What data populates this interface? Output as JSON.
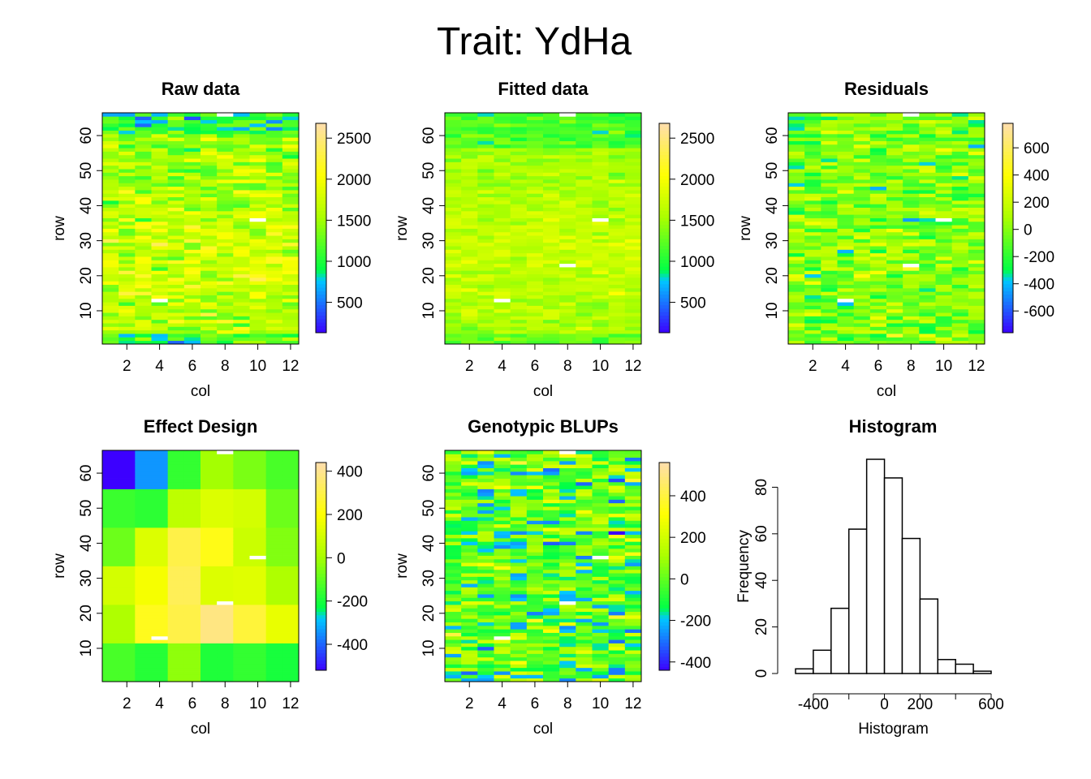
{
  "title": "Trait: YdHa",
  "chart_data": [
    {
      "type": "heatmap",
      "title": "Raw data",
      "xlabel": "col",
      "ylabel": "row",
      "xlim": [
        0.5,
        12.5
      ],
      "ylim": [
        0.5,
        66.5
      ],
      "xticks": [
        2,
        4,
        6,
        8,
        10,
        12
      ],
      "yticks": [
        10,
        20,
        30,
        40,
        50,
        60
      ],
      "colorbar": {
        "range": [
          130,
          2680
        ],
        "ticks": [
          500,
          1000,
          1500,
          2000,
          2500
        ]
      },
      "pattern": "raw",
      "missing": [
        [
          10,
          36
        ],
        [
          4,
          13
        ],
        [
          8,
          66
        ]
      ]
    },
    {
      "type": "heatmap",
      "title": "Fitted data",
      "xlabel": "col",
      "ylabel": "row",
      "xlim": [
        0.5,
        12.5
      ],
      "ylim": [
        0.5,
        66.5
      ],
      "xticks": [
        2,
        4,
        6,
        8,
        10,
        12
      ],
      "yticks": [
        10,
        20,
        30,
        40,
        50,
        60
      ],
      "colorbar": {
        "range": [
          130,
          2680
        ],
        "ticks": [
          500,
          1000,
          1500,
          2000,
          2500
        ]
      },
      "pattern": "fitted",
      "missing": [
        [
          10,
          36
        ],
        [
          4,
          13
        ],
        [
          8,
          23
        ],
        [
          8,
          66
        ]
      ]
    },
    {
      "type": "heatmap",
      "title": "Residuals",
      "xlabel": "col",
      "ylabel": "row",
      "xlim": [
        0.5,
        12.5
      ],
      "ylim": [
        0.5,
        66.5
      ],
      "xticks": [
        2,
        4,
        6,
        8,
        10,
        12
      ],
      "yticks": [
        10,
        20,
        30,
        40,
        50,
        60
      ],
      "colorbar": {
        "range": [
          -760,
          780
        ],
        "ticks": [
          -600,
          -400,
          -200,
          0,
          200,
          400,
          600
        ]
      },
      "pattern": "resid",
      "missing": [
        [
          10,
          36
        ],
        [
          4,
          13
        ],
        [
          8,
          23
        ],
        [
          8,
          66
        ]
      ]
    },
    {
      "type": "heatmap",
      "title": "Effect Design",
      "xlabel": "col",
      "ylabel": "row",
      "xlim": [
        0.5,
        12.5
      ],
      "ylim": [
        0.5,
        66.5
      ],
      "xticks": [
        2,
        4,
        6,
        8,
        10,
        12
      ],
      "yticks": [
        10,
        20,
        30,
        40,
        50,
        60
      ],
      "colorbar": {
        "range": [
          -520,
          440
        ],
        "ticks": [
          -400,
          -200,
          0,
          200,
          400
        ]
      },
      "pattern": "blocks",
      "block_cols": [
        [
          1,
          2
        ],
        [
          3,
          4
        ],
        [
          5,
          6
        ],
        [
          7,
          8
        ],
        [
          9,
          10
        ],
        [
          11,
          12
        ]
      ],
      "block_rows": [
        [
          1,
          11
        ],
        [
          12,
          22
        ],
        [
          23,
          33
        ],
        [
          34,
          44
        ],
        [
          45,
          55
        ],
        [
          56,
          66
        ]
      ],
      "block_values": [
        [
          -130,
          -180,
          -30,
          -190,
          -160,
          -200
        ],
        [
          20,
          240,
          300,
          380,
          280,
          150
        ],
        [
          100,
          180,
          320,
          120,
          130,
          20
        ],
        [
          -80,
          120,
          300,
          230,
          80,
          -50
        ],
        [
          -150,
          -170,
          50,
          120,
          100,
          -80
        ],
        [
          -520,
          -340,
          -160,
          0,
          -60,
          -130
        ]
      ],
      "missing": [
        [
          10,
          36
        ],
        [
          4,
          13
        ],
        [
          8,
          23
        ],
        [
          8,
          66
        ]
      ]
    },
    {
      "type": "heatmap",
      "title": "Genotypic BLUPs",
      "xlabel": "col",
      "ylabel": "row",
      "xlim": [
        0.5,
        12.5
      ],
      "ylim": [
        0.5,
        66.5
      ],
      "xticks": [
        2,
        4,
        6,
        8,
        10,
        12
      ],
      "yticks": [
        10,
        20,
        30,
        40,
        50,
        60
      ],
      "colorbar": {
        "range": [
          -440,
          560
        ],
        "ticks": [
          -400,
          -200,
          0,
          200,
          400
        ]
      },
      "pattern": "blup",
      "missing": [
        [
          10,
          36
        ],
        [
          4,
          13
        ],
        [
          8,
          23
        ],
        [
          8,
          66
        ]
      ]
    },
    {
      "type": "bar",
      "title": "Histogram",
      "xlabel": "Histogram",
      "ylabel": "Frequency",
      "bins": [
        -500,
        -400,
        -300,
        -200,
        -100,
        0,
        100,
        200,
        300,
        400,
        500,
        600
      ],
      "counts": [
        2,
        10,
        28,
        62,
        92,
        84,
        58,
        32,
        6,
        4,
        1
      ],
      "xticks": [
        -400,
        0,
        200,
        600
      ],
      "yticks": [
        0,
        20,
        40,
        60,
        80
      ],
      "xlim": [
        -500,
        600
      ],
      "ylim": [
        0,
        92
      ]
    }
  ]
}
